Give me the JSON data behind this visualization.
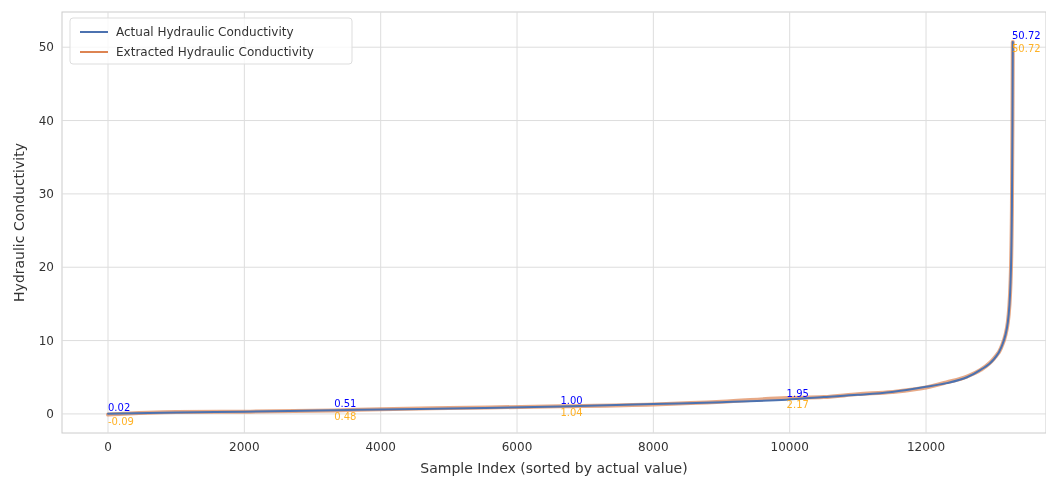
{
  "chart_data": {
    "type": "line",
    "xlabel": "Sample Index (sorted by actual value)",
    "ylabel": "Hydraulic Conductivity",
    "xlim": [
      -675,
      13760
    ],
    "ylim": [
      -2.6,
      54.8
    ],
    "xticks": [
      0,
      2000,
      4000,
      6000,
      8000,
      10000,
      12000
    ],
    "yticks": [
      0,
      10,
      20,
      30,
      40,
      50
    ],
    "grid": true,
    "legend": "top left",
    "series": [
      {
        "name": "Actual Hydraulic Conductivity",
        "color": "#4c72b0",
        "x": [
          0,
          1000,
          2000,
          3318,
          4000,
          5000,
          6637,
          8000,
          9000,
          9955,
          10500,
          11000,
          11500,
          12000,
          12300,
          12600,
          12800,
          13000,
          13100,
          13200,
          13240,
          13260,
          13268,
          13273
        ],
        "values": [
          0.02,
          0.2,
          0.3,
          0.51,
          0.6,
          0.75,
          1.0,
          1.35,
          1.6,
          1.95,
          2.3,
          2.6,
          3.0,
          3.7,
          4.2,
          5.0,
          6.0,
          7.5,
          9,
          12.5,
          18,
          28,
          40,
          50.72
        ]
      },
      {
        "name": "Extracted Hydraulic Conductivity",
        "color": "#dd8452",
        "x": [
          0,
          1000,
          2000,
          3318,
          4000,
          5000,
          6637,
          8000,
          9000,
          9955,
          10500,
          11000,
          11500,
          12000,
          12300,
          12600,
          12800,
          13000,
          13100,
          13200,
          13240,
          13260,
          13268,
          13273
        ],
        "values": [
          -0.09,
          0.25,
          0.3,
          0.48,
          0.65,
          0.8,
          1.04,
          1.3,
          1.65,
          2.17,
          2.3,
          2.7,
          3.0,
          3.6,
          4.3,
          5.1,
          6.0,
          7.6,
          9,
          12.5,
          18,
          28,
          40,
          50.72
        ]
      }
    ],
    "annotations": [
      {
        "text": "0.02",
        "x": 0,
        "y": 0.02
      },
      {
        "text": "-0.09",
        "x": 0,
        "y": -0.09
      },
      {
        "text": "0.51",
        "x": 3318,
        "y": 0.51
      },
      {
        "text": "0.48",
        "x": 3318,
        "y": 0.48
      },
      {
        "text": "1.00",
        "x": 6637,
        "y": 1.0
      },
      {
        "text": "1.04",
        "x": 6637,
        "y": 1.04
      },
      {
        "text": "1.95",
        "x": 9955,
        "y": 1.95
      },
      {
        "text": "2.17",
        "x": 9955,
        "y": 2.17
      },
      {
        "text": "50.72",
        "x": 13273,
        "y": 50.72
      },
      {
        "text": "50.72",
        "x": 13273,
        "y": 50.72
      }
    ]
  }
}
